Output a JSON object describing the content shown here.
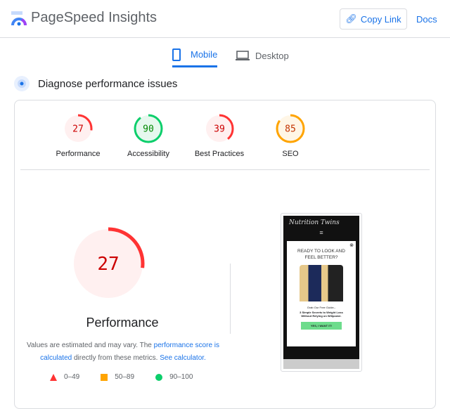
{
  "header": {
    "title": "PageSpeed Insights",
    "copy_link": "Copy Link",
    "docs": "Docs"
  },
  "tabs": [
    {
      "label": "Mobile",
      "active": true
    },
    {
      "label": "Desktop",
      "active": false
    }
  ],
  "section_title": "Diagnose performance issues",
  "gauges": [
    {
      "label": "Performance",
      "score": 27,
      "color": "#ff3333",
      "bg": "#fff0f0",
      "text": "#c00"
    },
    {
      "label": "Accessibility",
      "score": 90,
      "color": "#0cce6b",
      "bg": "#e6f8ee",
      "text": "#080"
    },
    {
      "label": "Best Practices",
      "score": 39,
      "color": "#ff3333",
      "bg": "#fff0f0",
      "text": "#c00"
    },
    {
      "label": "SEO",
      "score": 85,
      "color": "#ffa400",
      "bg": "#fff6e6",
      "text": "#c33300"
    }
  ],
  "main": {
    "score": 27,
    "label": "Performance",
    "note_pre": "Values are estimated and may vary. The ",
    "note_link1": "performance score is calculated",
    "note_mid": " directly from these metrics. ",
    "note_link2": "See calculator."
  },
  "legend": [
    {
      "range": "0–49",
      "icon": "triangle-icon",
      "color": "#ff3333"
    },
    {
      "range": "50–89",
      "icon": "square-icon",
      "color": "#ffa400"
    },
    {
      "range": "90–100",
      "icon": "circle-icon",
      "color": "#0cce6b"
    }
  ],
  "screenshot": {
    "site": "Nutrition Twins",
    "popup_title": "READY TO LOOK AND FEEL BETTER?",
    "guide_intro": "Grab Our Free Guide--",
    "guide_title": "3 Simple Secrets to Weight Loss Without Relying on Willpower.",
    "cta": "YES, I WANT IT!"
  }
}
